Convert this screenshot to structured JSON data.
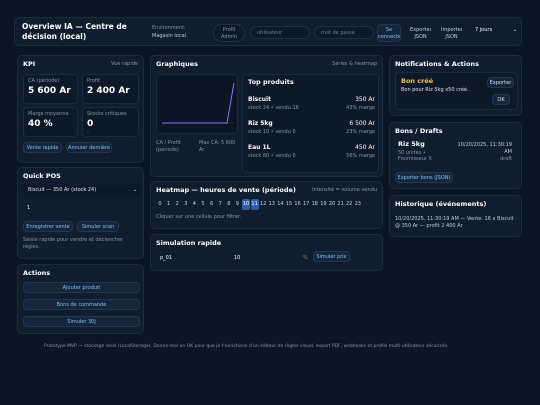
{
  "header": {
    "title_line1": "Overview IA — Centre de",
    "title_line2": "décision (local)",
    "env_label": "Environment:",
    "env_value": "Magasin local",
    "profile_line1": "Profil",
    "profile_line2": "Admin",
    "user_placeholder": "utilisateur",
    "password_placeholder": "mot de passe",
    "signin_line1": "Se",
    "signin_line2": "connecter",
    "export_line1": "Exporter",
    "export_line2": "JSON",
    "import_line1": "Importer",
    "import_line2": "JSON",
    "period_select": "7 jours"
  },
  "kpi": {
    "title": "KPI",
    "view_link": "Vue rapide",
    "cards": [
      {
        "label": "CA (période)",
        "value": "5 600 Ar",
        "sub": ""
      },
      {
        "label": "Profit",
        "value": "2 400 Ar",
        "sub": ""
      },
      {
        "label": "Marge moyenne",
        "value": "40 %",
        "sub": ""
      },
      {
        "label": "Stocks critiques",
        "value": "0",
        "sub": "-"
      }
    ],
    "btn_quick_sale": "Vente rapide",
    "btn_cancel_last": "Annuler dernière"
  },
  "quick_pos": {
    "title": "Quick POS",
    "product_select": "Biscuit — 350 Ar (stock 24)",
    "quantity": "1",
    "btn_save": "Enregistrer vente",
    "btn_scan": "Simuler scan",
    "hint": "Saisie rapide pour vendre et déclencher règles."
  },
  "actions": {
    "title": "Actions",
    "buttons": [
      "Ajouter produit",
      "Bons de commande",
      "Simuler 30j"
    ]
  },
  "charts": {
    "title": "Graphiques",
    "link": "Séries & heatmap",
    "legend_left_1": "CA / Profit",
    "legend_left_2": "(période)",
    "legend_right_1": "Max CA: 5 600",
    "legend_right_2": "Ar"
  },
  "top_products": {
    "title": "Top produits",
    "items": [
      {
        "name": "Biscuit",
        "price": "350 Ar",
        "meta": "stock 24 • vendu 16",
        "margin": "43% marge"
      },
      {
        "name": "Riz 5kg",
        "price": "6 500 Ar",
        "meta": "stock 10 • vendu 0",
        "margin": "23% marge"
      },
      {
        "name": "Eau 1L",
        "price": "450 Ar",
        "meta": "stock 80 • vendu 0",
        "margin": "56% marge"
      }
    ]
  },
  "heatmap": {
    "title": "Heatmap — heures de vente (période)",
    "legend": "Intensité = volume vendu",
    "hours": [
      "0",
      "1",
      "2",
      "3",
      "4",
      "5",
      "6",
      "7",
      "8",
      "9",
      "10",
      "11",
      "12",
      "13",
      "14",
      "15",
      "16",
      "17",
      "18",
      "19",
      "20",
      "21",
      "22",
      "23"
    ],
    "active_hours": [
      "10",
      "11"
    ],
    "hint": "Cliquer sur une cellule pour filtrer."
  },
  "simulation": {
    "title": "Simulation rapide",
    "product_id": "p_01",
    "percent": "10",
    "unit": "%",
    "btn": "Simuler prix"
  },
  "notifications": {
    "title": "Notifications & Actions",
    "item_title": "Bon créé",
    "item_text": "Bon pour Riz 5kg x50 créé.",
    "btn_export": "Exporter",
    "btn_ok": "OK"
  },
  "bons": {
    "title": "Bons / Drafts",
    "name": "Riz 5kg",
    "units": "50 unités •",
    "supplier": "Fournisseur X",
    "date_line1": "10/20/2025, 11:30:19",
    "date_line2": "AM",
    "status": "draft",
    "btn_export": "Exporter bons (JSON)"
  },
  "history": {
    "title": "Historique (événements)",
    "entry_line1": "10/20/2025, 11:30:19 AM — Vente: 16 x Biscuit",
    "entry_line2": "@ 350 Ar — profit 2 400 Ar"
  },
  "footer": {
    "text": "Prototype MVP — stockage local (LocalStorage). Donne-moi un OK pour que je t'enrichisse d'un éditeur de règles visuel, export PDF, webhooks et profils multi-utilisateur sécurisés."
  },
  "colors": {
    "background": "#0b1524",
    "panel": "#101d2e",
    "accent": "#7cc4ff",
    "heat_active": "#2a5ea8",
    "chart_line": "#8d74ff"
  },
  "icons": [
    "chevron-down-icon"
  ]
}
